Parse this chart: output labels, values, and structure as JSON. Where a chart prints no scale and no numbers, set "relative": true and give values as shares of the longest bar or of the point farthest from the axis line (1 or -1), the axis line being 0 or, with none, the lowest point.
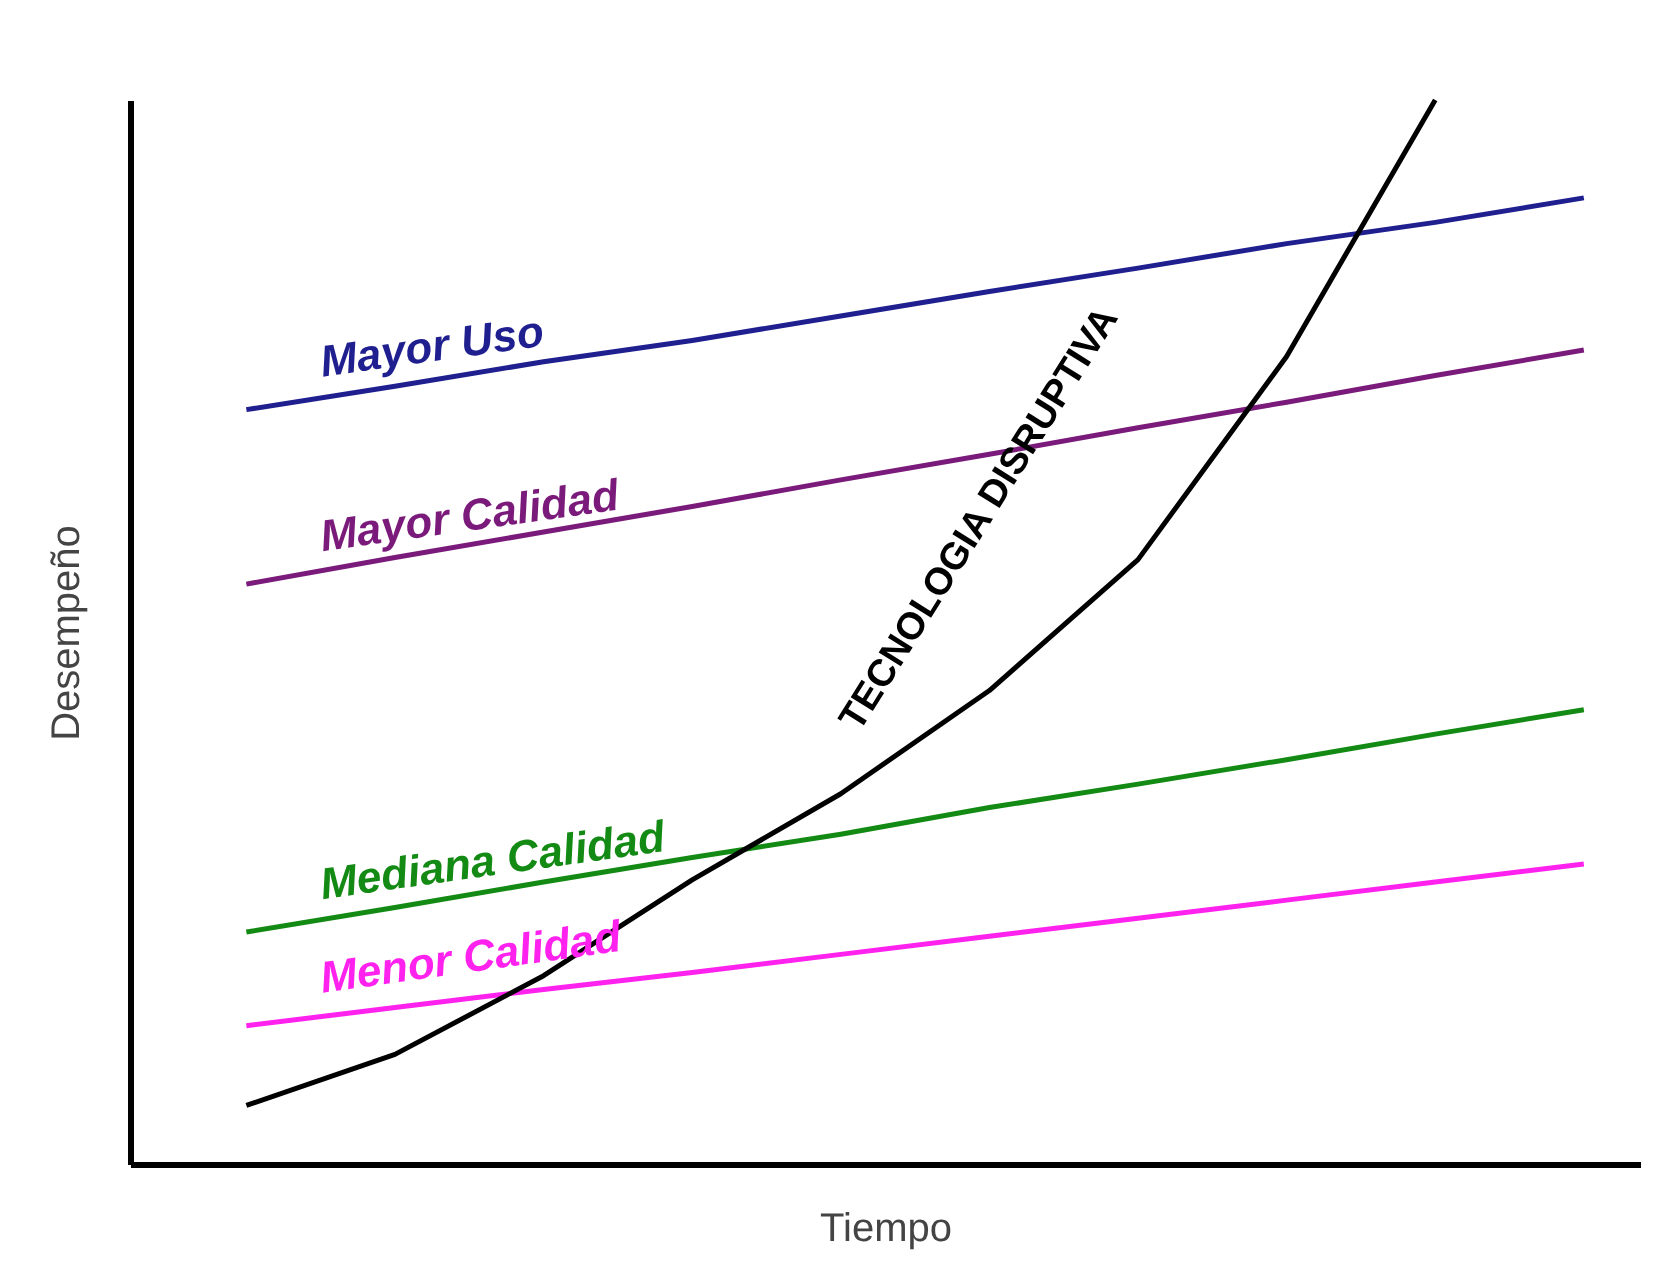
{
  "chart_data": {
    "type": "line",
    "relative": true,
    "xlabel": "Tiempo",
    "ylabel": "Desempeño",
    "categories": [
      null,
      null,
      null,
      null,
      null,
      null,
      null,
      null,
      null,
      null
    ],
    "line_style": "solid",
    "series": [
      {
        "name": "Mayor Uso",
        "color": "#1f1f8f",
        "values": [
          0.709,
          0.731,
          0.754,
          0.774,
          0.797,
          0.82,
          0.842,
          0.865,
          0.885,
          0.908
        ]
      },
      {
        "name": "Mayor Calidad",
        "color": "#7a1a7a",
        "values": [
          0.545,
          0.57,
          0.594,
          0.618,
          0.643,
          0.667,
          0.692,
          0.716,
          0.741,
          0.765
        ]
      },
      {
        "name": "Mediana Calidad",
        "color": "#138a13",
        "values": [
          0.218,
          0.241,
          0.265,
          0.288,
          0.31,
          0.335,
          0.357,
          0.38,
          0.404,
          0.427
        ]
      },
      {
        "name": "Menor Calidad",
        "color": "#ff22ee",
        "values": [
          0.13,
          0.147,
          0.164,
          0.18,
          0.197,
          0.214,
          0.231,
          0.248,
          0.265,
          0.282
        ]
      },
      {
        "name": "TECNOLOGIA DISRUPTIVA",
        "color": "#000000",
        "values": [
          0.055,
          0.103,
          0.177,
          0.267,
          0.348,
          0.445,
          0.568,
          0.759,
          1,
          null
        ]
      }
    ]
  }
}
